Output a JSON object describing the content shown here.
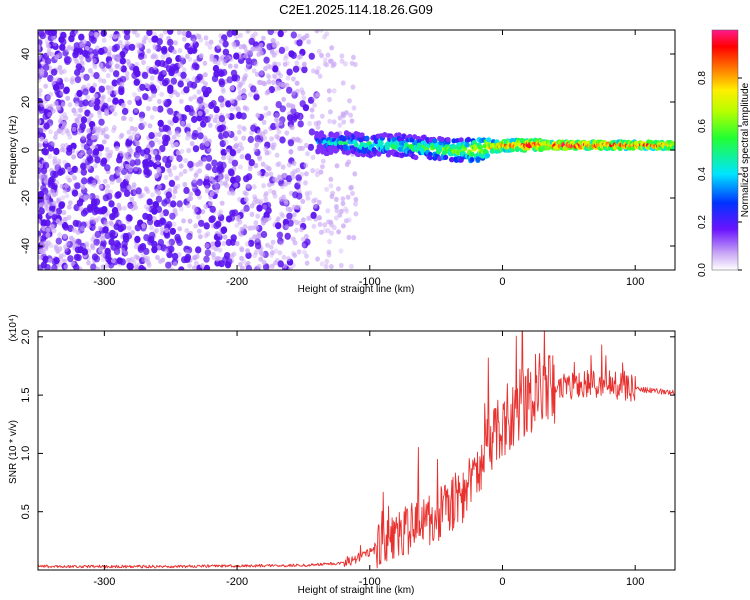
{
  "page": {
    "title": "C2E1.2025.114.18.26.G09"
  },
  "colors": {
    "snr_line": "#e8312f",
    "strong_point": "#5a12ee",
    "weak_point": "#c9a6f5",
    "axis": "#000000"
  },
  "chart_data": [
    {
      "type": "heatmap",
      "title": "C2E1.2025.114.18.26.G09",
      "xlabel": "Height of straight line (km)",
      "ylabel": "Frequency (Hz)",
      "xlim": [
        -350,
        130
      ],
      "ylim": [
        -50,
        50
      ],
      "xticks": [
        -300,
        -200,
        -100,
        0,
        100
      ],
      "yticks": [
        -40,
        -20,
        0,
        20,
        40
      ],
      "colorbar": {
        "label": "Normalized spectral amplitude",
        "range": [
          0,
          1
        ],
        "ticks": [
          "0.0",
          "0.2",
          "0.4",
          "0.6",
          "0.8"
        ],
        "colormap": "rainbow (purple to red)"
      },
      "ridge": {
        "description": "scatter noise below about -140 km; coherent signal near 0 Hz above -140 km",
        "x": [
          -140,
          -120,
          -100,
          -80,
          -60,
          -40,
          -20,
          0,
          20,
          40,
          60,
          80,
          100,
          130
        ],
        "frequency_hz": [
          3,
          3,
          2,
          2,
          1,
          0,
          0,
          2,
          2,
          2,
          2,
          2,
          2,
          2
        ],
        "amplitude": [
          0.3,
          0.45,
          0.5,
          0.5,
          0.55,
          0.6,
          0.7,
          0.85,
          0.9,
          0.95,
          0.95,
          0.9,
          0.9,
          0.85
        ]
      }
    },
    {
      "type": "line",
      "xlabel": "Height of straight line (km)",
      "ylabel": "SNR (10 * v/v)",
      "y_multiplier": "(x10⁴)",
      "xlim": [
        -350,
        130
      ],
      "ylim": [
        0,
        2.05
      ],
      "xticks": [
        -300,
        -200,
        -100,
        0,
        100
      ],
      "yticks": [
        "0.5",
        "1.0",
        "1.5",
        "2.0"
      ],
      "series": [
        {
          "x": [
            -350,
            -300,
            -250,
            -200,
            -150,
            -120,
            -100,
            -90,
            -80,
            -70,
            -60,
            -50,
            -40,
            -30,
            -25,
            -20,
            -15,
            -10,
            -5,
            0,
            10,
            20,
            30,
            40,
            60,
            80,
            100,
            130
          ],
          "values": [
            0.03,
            0.03,
            0.03,
            0.035,
            0.04,
            0.06,
            0.15,
            0.25,
            0.3,
            0.35,
            0.4,
            0.45,
            0.55,
            0.65,
            0.75,
            0.8,
            0.95,
            1.05,
            1.15,
            1.25,
            1.4,
            1.5,
            1.55,
            1.55,
            1.6,
            1.6,
            1.55,
            1.52
          ]
        }
      ]
    }
  ]
}
